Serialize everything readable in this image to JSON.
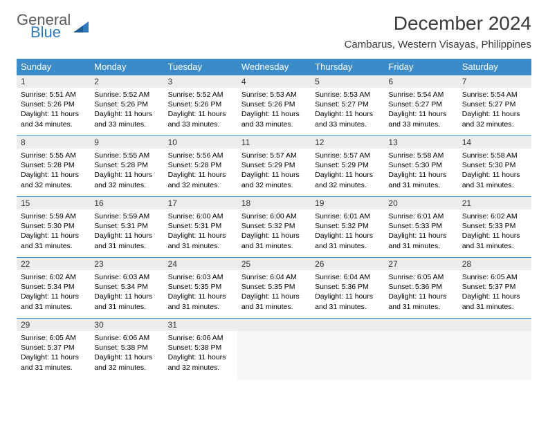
{
  "logo": {
    "general": "General",
    "blue": "Blue"
  },
  "title": "December 2024",
  "location": "Cambarus, Western Visayas, Philippines",
  "colors": {
    "header_bg": "#3b8bc8",
    "header_text": "#ffffff",
    "daynum_bg": "#ececec",
    "cell_border": "#3b8bc8",
    "logo_gray": "#5b5b5b",
    "logo_blue": "#2f7bbf"
  },
  "daysOfWeek": [
    "Sunday",
    "Monday",
    "Tuesday",
    "Wednesday",
    "Thursday",
    "Friday",
    "Saturday"
  ],
  "weeks": [
    [
      {
        "n": "1",
        "sr": "5:51 AM",
        "ss": "5:26 PM",
        "dl": "11 hours and 34 minutes."
      },
      {
        "n": "2",
        "sr": "5:52 AM",
        "ss": "5:26 PM",
        "dl": "11 hours and 33 minutes."
      },
      {
        "n": "3",
        "sr": "5:52 AM",
        "ss": "5:26 PM",
        "dl": "11 hours and 33 minutes."
      },
      {
        "n": "4",
        "sr": "5:53 AM",
        "ss": "5:26 PM",
        "dl": "11 hours and 33 minutes."
      },
      {
        "n": "5",
        "sr": "5:53 AM",
        "ss": "5:27 PM",
        "dl": "11 hours and 33 minutes."
      },
      {
        "n": "6",
        "sr": "5:54 AM",
        "ss": "5:27 PM",
        "dl": "11 hours and 33 minutes."
      },
      {
        "n": "7",
        "sr": "5:54 AM",
        "ss": "5:27 PM",
        "dl": "11 hours and 32 minutes."
      }
    ],
    [
      {
        "n": "8",
        "sr": "5:55 AM",
        "ss": "5:28 PM",
        "dl": "11 hours and 32 minutes."
      },
      {
        "n": "9",
        "sr": "5:55 AM",
        "ss": "5:28 PM",
        "dl": "11 hours and 32 minutes."
      },
      {
        "n": "10",
        "sr": "5:56 AM",
        "ss": "5:28 PM",
        "dl": "11 hours and 32 minutes."
      },
      {
        "n": "11",
        "sr": "5:57 AM",
        "ss": "5:29 PM",
        "dl": "11 hours and 32 minutes."
      },
      {
        "n": "12",
        "sr": "5:57 AM",
        "ss": "5:29 PM",
        "dl": "11 hours and 32 minutes."
      },
      {
        "n": "13",
        "sr": "5:58 AM",
        "ss": "5:30 PM",
        "dl": "11 hours and 31 minutes."
      },
      {
        "n": "14",
        "sr": "5:58 AM",
        "ss": "5:30 PM",
        "dl": "11 hours and 31 minutes."
      }
    ],
    [
      {
        "n": "15",
        "sr": "5:59 AM",
        "ss": "5:30 PM",
        "dl": "11 hours and 31 minutes."
      },
      {
        "n": "16",
        "sr": "5:59 AM",
        "ss": "5:31 PM",
        "dl": "11 hours and 31 minutes."
      },
      {
        "n": "17",
        "sr": "6:00 AM",
        "ss": "5:31 PM",
        "dl": "11 hours and 31 minutes."
      },
      {
        "n": "18",
        "sr": "6:00 AM",
        "ss": "5:32 PM",
        "dl": "11 hours and 31 minutes."
      },
      {
        "n": "19",
        "sr": "6:01 AM",
        "ss": "5:32 PM",
        "dl": "11 hours and 31 minutes."
      },
      {
        "n": "20",
        "sr": "6:01 AM",
        "ss": "5:33 PM",
        "dl": "11 hours and 31 minutes."
      },
      {
        "n": "21",
        "sr": "6:02 AM",
        "ss": "5:33 PM",
        "dl": "11 hours and 31 minutes."
      }
    ],
    [
      {
        "n": "22",
        "sr": "6:02 AM",
        "ss": "5:34 PM",
        "dl": "11 hours and 31 minutes."
      },
      {
        "n": "23",
        "sr": "6:03 AM",
        "ss": "5:34 PM",
        "dl": "11 hours and 31 minutes."
      },
      {
        "n": "24",
        "sr": "6:03 AM",
        "ss": "5:35 PM",
        "dl": "11 hours and 31 minutes."
      },
      {
        "n": "25",
        "sr": "6:04 AM",
        "ss": "5:35 PM",
        "dl": "11 hours and 31 minutes."
      },
      {
        "n": "26",
        "sr": "6:04 AM",
        "ss": "5:36 PM",
        "dl": "11 hours and 31 minutes."
      },
      {
        "n": "27",
        "sr": "6:05 AM",
        "ss": "5:36 PM",
        "dl": "11 hours and 31 minutes."
      },
      {
        "n": "28",
        "sr": "6:05 AM",
        "ss": "5:37 PM",
        "dl": "11 hours and 31 minutes."
      }
    ],
    [
      {
        "n": "29",
        "sr": "6:05 AM",
        "ss": "5:37 PM",
        "dl": "11 hours and 31 minutes."
      },
      {
        "n": "30",
        "sr": "6:06 AM",
        "ss": "5:38 PM",
        "dl": "11 hours and 32 minutes."
      },
      {
        "n": "31",
        "sr": "6:06 AM",
        "ss": "5:38 PM",
        "dl": "11 hours and 32 minutes."
      },
      null,
      null,
      null,
      null
    ]
  ],
  "labels": {
    "sunrise": "Sunrise:",
    "sunset": "Sunset:",
    "daylight": "Daylight:"
  }
}
